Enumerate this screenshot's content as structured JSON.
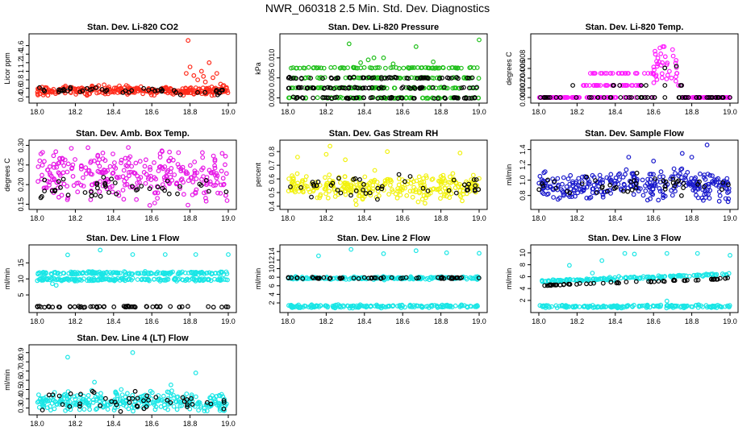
{
  "title": "NWR_060318  2.5 Min. Std. Dev. Diagnostics",
  "chart_data": [
    {
      "type": "scatter",
      "title": "Stan. Dev. Li-820 CO2",
      "ylabel": "Licor ppm",
      "color": "#ff2a1a",
      "xlim": [
        18.0,
        19.0
      ],
      "ylim": [
        0.33,
        1.8
      ],
      "xticks": [
        "18.0",
        "18.2",
        "18.4",
        "18.6",
        "18.8",
        "19.0"
      ],
      "yticks": [
        0.4,
        0.6,
        0.8,
        1.0,
        1.2,
        1.4,
        1.6
      ],
      "ytick_labels": [
        "0.4",
        "0.6",
        "0.8",
        "1",
        "1.2",
        "1.4",
        "1.6"
      ],
      "base_mean": 0.55,
      "base_sd": 0.05,
      "black_mean": 0.55,
      "black_sd": 0.04,
      "outliers": [
        [
          18.79,
          1.72
        ],
        [
          18.8,
          1.1
        ],
        [
          18.82,
          0.9
        ],
        [
          18.84,
          0.8
        ],
        [
          18.86,
          1.0
        ],
        [
          18.88,
          0.75
        ],
        [
          18.9,
          1.2
        ],
        [
          18.92,
          0.85
        ],
        [
          18.94,
          0.95
        ],
        [
          18.96,
          0.7
        ],
        [
          18.78,
          0.95
        ],
        [
          18.87,
          0.88
        ]
      ]
    },
    {
      "type": "scatter",
      "title": "Stan. Dev. Li-820 Pressure",
      "ylabel": "kPa",
      "color": "#1fbf1a",
      "xlim": [
        18.0,
        19.0
      ],
      "ylim": [
        -0.0005,
        0.0152
      ],
      "xticks": [
        "18.0",
        "18.2",
        "18.4",
        "18.6",
        "18.8",
        "19.0"
      ],
      "yticks": [
        0.0,
        0.005,
        0.01
      ],
      "ytick_labels": [
        "0.000",
        "0.005",
        "0.010"
      ],
      "levels": [
        0.0,
        0.0025,
        0.005,
        0.0075
      ],
      "black_levels": [
        0.0,
        0.0025,
        0.005
      ],
      "outliers": [
        [
          18.32,
          0.0135
        ],
        [
          18.67,
          0.0128
        ],
        [
          19.0,
          0.0145
        ],
        [
          18.42,
          0.0095
        ],
        [
          18.5,
          0.01
        ],
        [
          18.55,
          0.0085
        ],
        [
          18.76,
          0.009
        ],
        [
          18.45,
          0.01
        ],
        [
          18.38,
          0.0088
        ]
      ]
    },
    {
      "type": "scatter",
      "title": "Stan. Dev. Li-820 Temp.",
      "ylabel": "degrees C",
      "color": "#ff1aff",
      "xlim": [
        18.0,
        19.0
      ],
      "ylim": [
        -0.0005,
        0.0125
      ],
      "xticks": [
        "18.0",
        "18.2",
        "18.4",
        "18.6",
        "18.8",
        "19.0"
      ],
      "yticks": [
        0.0,
        0.002,
        0.004,
        0.006,
        0.008
      ],
      "ytick_labels": [
        "0.000",
        "0.002",
        "0.004",
        "0.006",
        "0.008"
      ],
      "temp_profile": true
    },
    {
      "type": "scatter",
      "title": "Stan. Dev. Amb. Box Temp.",
      "ylabel": "degrees C",
      "color": "#e619e6",
      "xlim": [
        18.0,
        19.0
      ],
      "ylim": [
        0.145,
        0.305
      ],
      "xticks": [
        "18.0",
        "18.2",
        "18.4",
        "18.6",
        "18.8",
        "19.0"
      ],
      "yticks": [
        0.15,
        0.2,
        0.25,
        0.3
      ],
      "ytick_labels": [
        "0.15",
        "0.20",
        "0.25",
        "0.30"
      ],
      "base_mean": 0.225,
      "base_sd": 0.03,
      "black_mean": 0.195,
      "black_sd": 0.012
    },
    {
      "type": "scatter",
      "title": "Stan. Dev. Gas Stream RH",
      "ylabel": "percent",
      "color": "#f2f20f",
      "xlim": [
        18.0,
        19.0
      ],
      "ylim": [
        0.4,
        0.86
      ],
      "xticks": [
        "18.0",
        "18.2",
        "18.4",
        "18.6",
        "18.8",
        "19.0"
      ],
      "yticks": [
        0.4,
        0.5,
        0.6,
        0.7,
        0.8
      ],
      "ytick_labels": [
        "0.4",
        "0.5",
        "0.6",
        "0.7",
        "0.8"
      ],
      "base_mean": 0.54,
      "base_sd": 0.045,
      "black_mean": 0.55,
      "black_sd": 0.05,
      "outliers": [
        [
          18.22,
          0.84
        ],
        [
          18.2,
          0.78
        ],
        [
          18.52,
          0.8
        ],
        [
          18.9,
          0.79
        ],
        [
          18.05,
          0.76
        ],
        [
          18.3,
          0.74
        ]
      ]
    },
    {
      "type": "scatter",
      "title": "Stan. Dev. Sample Flow",
      "ylabel": "ml/min",
      "color": "#1a1acc",
      "xlim": [
        18.0,
        19.0
      ],
      "ylim": [
        0.66,
        1.48
      ],
      "xticks": [
        "18.0",
        "18.2",
        "18.4",
        "18.6",
        "18.8",
        "19.0"
      ],
      "yticks": [
        0.8,
        1.0,
        1.2,
        1.4
      ],
      "ytick_labels": [
        "0.8",
        "1.0",
        "1.2",
        "1.4"
      ],
      "base_mean": 0.92,
      "base_sd": 0.09,
      "black_mean": 0.95,
      "black_sd": 0.07,
      "bump": true,
      "outliers": [
        [
          18.88,
          1.46
        ],
        [
          18.75,
          1.35
        ],
        [
          18.6,
          1.25
        ],
        [
          18.47,
          1.3
        ],
        [
          18.99,
          0.72
        ],
        [
          18.1,
          0.75
        ],
        [
          18.8,
          1.3
        ]
      ]
    },
    {
      "type": "scatter",
      "title": "Stan. Dev. Line 1 Flow",
      "ylabel": "ml/min",
      "color": "#1ae6e6",
      "xlim": [
        18.0,
        19.0
      ],
      "ylim": [
        0.5,
        19.6
      ],
      "xticks": [
        "18.0",
        "18.2",
        "18.4",
        "18.6",
        "18.8",
        "19.0"
      ],
      "yticks": [
        5,
        10,
        15
      ],
      "ytick_labels": [
        "5",
        "10",
        "15"
      ],
      "bands": [
        11.8,
        9.8
      ],
      "black_levels": [
        1.3
      ],
      "outliers": [
        [
          18.16,
          17.5
        ],
        [
          18.33,
          19
        ],
        [
          18.5,
          17.6
        ],
        [
          18.67,
          17.6
        ],
        [
          18.83,
          17.6
        ],
        [
          19.0,
          17.6
        ],
        [
          18.08,
          8.5
        ],
        [
          18.1,
          8.0
        ]
      ]
    },
    {
      "type": "scatter",
      "title": "Stan. Dev. Line 2 Flow",
      "ylabel": "ml/min",
      "color": "#1ae6e6",
      "xlim": [
        18.0,
        19.0
      ],
      "ylim": [
        0.5,
        14.8
      ],
      "xticks": [
        "18.0",
        "18.2",
        "18.4",
        "18.6",
        "18.8",
        "19.0"
      ],
      "yticks": [
        2,
        4,
        6,
        8,
        10,
        12,
        14
      ],
      "ytick_labels": [
        "2",
        "4",
        "6",
        "8",
        "10",
        "12",
        "14"
      ],
      "bands": [
        7.8,
        1.2
      ],
      "black_levels": [
        7.8
      ],
      "outliers": [
        [
          18.16,
          13
        ],
        [
          18.33,
          14.5
        ],
        [
          18.5,
          13.5
        ],
        [
          18.67,
          14.2
        ],
        [
          18.83,
          13.7
        ],
        [
          19.0,
          13.6
        ]
      ]
    },
    {
      "type": "scatter",
      "title": "Stan. Dev. Line 3 Flow",
      "ylabel": "ml/min",
      "color": "#1ae6e6",
      "xlim": [
        18.0,
        19.0
      ],
      "ylim": [
        0.5,
        10.8
      ],
      "xticks": [
        "18.0",
        "18.2",
        "18.4",
        "18.6",
        "18.8",
        "19.0"
      ],
      "yticks": [
        2,
        4,
        6,
        8,
        10
      ],
      "ytick_labels": [
        "2",
        "4",
        "6",
        "8",
        "10"
      ],
      "bands": [
        5.2,
        1.0
      ],
      "black_levels": [
        4.5
      ],
      "ramp": true,
      "outliers": [
        [
          18.16,
          7.9
        ],
        [
          18.33,
          8.7
        ],
        [
          18.45,
          9.9
        ],
        [
          18.5,
          9.8
        ],
        [
          18.67,
          9.9
        ],
        [
          18.83,
          9.9
        ],
        [
          19.0,
          9.6
        ],
        [
          18.67,
          1.9
        ],
        [
          18.28,
          6.6
        ]
      ]
    },
    {
      "type": "scatter",
      "title": "Stan. Dev. Line 4 (LT) Flow",
      "ylabel": "ml/min",
      "color": "#1ae6e6",
      "xlim": [
        18.0,
        19.0
      ],
      "ylim": [
        0.26,
        0.95
      ],
      "xticks": [
        "18.0",
        "18.2",
        "18.4",
        "18.6",
        "18.8",
        "19.0"
      ],
      "yticks": [
        0.3,
        0.4,
        0.5,
        0.6,
        0.7,
        0.8,
        0.9
      ],
      "ytick_labels": [
        "0.3",
        "0.4",
        "0.5",
        "0.6",
        "0.7",
        "0.8",
        "0.9"
      ],
      "base_mean": 0.37,
      "base_sd": 0.055,
      "black_mean": 0.38,
      "black_sd": 0.05,
      "outliers": [
        [
          18.16,
          0.85
        ],
        [
          18.5,
          0.9
        ],
        [
          18.83,
          0.68
        ],
        [
          18.3,
          0.58
        ],
        [
          18.7,
          0.55
        ]
      ]
    }
  ]
}
